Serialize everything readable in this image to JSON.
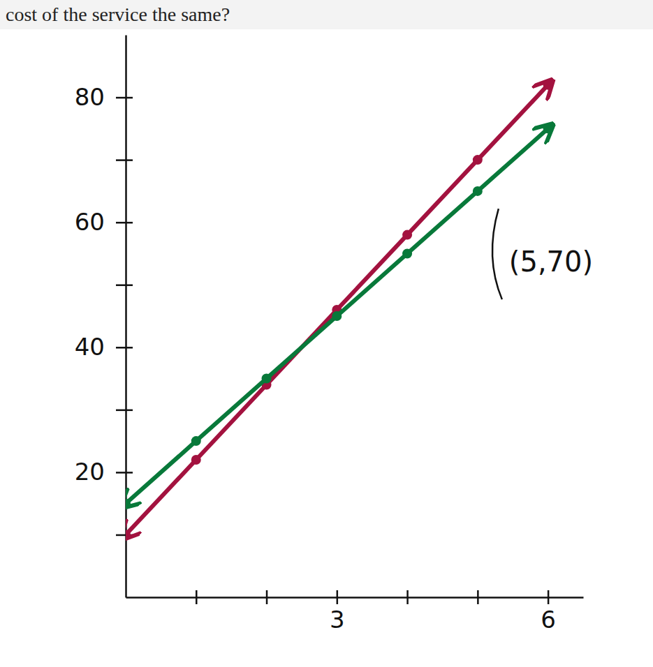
{
  "chart_data": {
    "type": "line",
    "title": "cost of the service the same?",
    "xlim": [
      0,
      6.5
    ],
    "xticks": [
      {
        "value": 1,
        "label": null
      },
      {
        "value": 2,
        "label": null
      },
      3,
      {
        "value": 4,
        "label": null
      },
      {
        "value": 5,
        "label": null
      },
      6
    ],
    "ylim": [
      0,
      90
    ],
    "yticks": [
      {
        "value": 10,
        "label": null
      },
      20,
      {
        "value": 30,
        "label": null
      },
      40,
      {
        "value": 50,
        "label": null
      },
      60,
      {
        "value": 70,
        "label": null
      },
      80
    ],
    "grid": false,
    "series": [
      {
        "color": "#a3123f",
        "marker": "circle",
        "x": [
          0,
          1,
          2,
          3,
          4,
          5,
          6
        ],
        "values": [
          10,
          22,
          34,
          46,
          58,
          70,
          82
        ]
      },
      {
        "color": "#08793a",
        "marker": "circle",
        "x": [
          0,
          1,
          2,
          3,
          4,
          5,
          6
        ],
        "values": [
          15,
          25,
          35,
          45,
          55,
          65,
          75
        ]
      }
    ],
    "annotations": [
      {
        "text": "(5,70)",
        "x": 5,
        "y": 70
      }
    ]
  }
}
